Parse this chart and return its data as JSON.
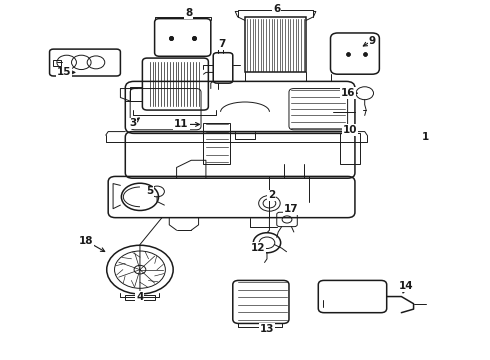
{
  "bg_color": "#ffffff",
  "fig_width": 4.9,
  "fig_height": 3.6,
  "dpi": 100,
  "line_color": "#1a1a1a",
  "label_fontsize": 7.5,
  "label_fontweight": "bold",
  "labels": {
    "8": [
      0.385,
      0.955,
      0.385,
      0.93
    ],
    "3": [
      0.285,
      0.565,
      0.285,
      0.59
    ],
    "7": [
      0.455,
      0.865,
      0.455,
      0.84
    ],
    "6": [
      0.565,
      0.975,
      0.565,
      0.95
    ],
    "9": [
      0.755,
      0.885,
      0.755,
      0.86
    ],
    "16": [
      0.73,
      0.72,
      0.73,
      0.745
    ],
    "1": [
      0.86,
      0.6,
      0.86,
      0.625
    ],
    "15": [
      0.145,
      0.79,
      0.17,
      0.79
    ],
    "11": [
      0.38,
      0.655,
      0.41,
      0.655
    ],
    "10": [
      0.72,
      0.625,
      0.72,
      0.65
    ],
    "5": [
      0.32,
      0.44,
      0.32,
      0.465
    ],
    "2": [
      0.565,
      0.43,
      0.565,
      0.455
    ],
    "17": [
      0.58,
      0.41,
      0.58,
      0.435
    ],
    "12": [
      0.545,
      0.285,
      0.545,
      0.31
    ],
    "18": [
      0.175,
      0.325,
      0.2,
      0.325
    ],
    "4": [
      0.285,
      0.065,
      0.285,
      0.09
    ],
    "13": [
      0.545,
      0.065,
      0.545,
      0.09
    ],
    "14": [
      0.82,
      0.2,
      0.82,
      0.225
    ]
  }
}
